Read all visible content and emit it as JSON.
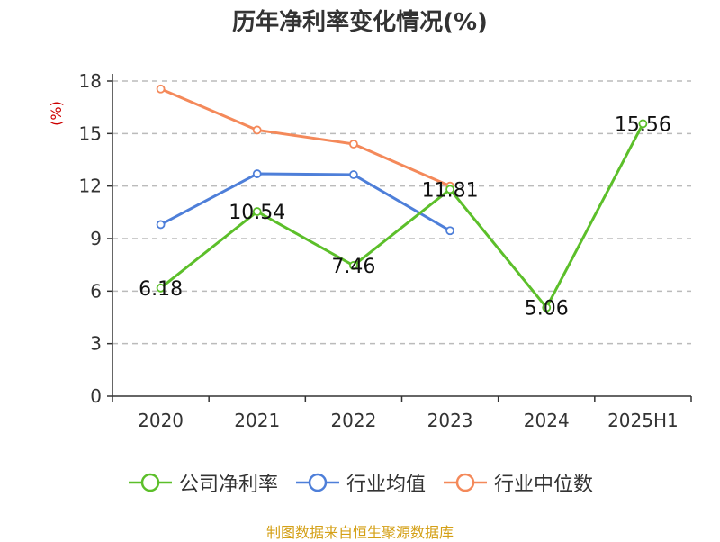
{
  "title": "历年净利率变化情况(%)",
  "source_note": "制图数据来自恒生聚源数据库",
  "colors": {
    "axis": "#333333",
    "grid": "#bbbbbb",
    "unit_label": "#cc0000",
    "source": "#d4a017"
  },
  "chart_data": {
    "type": "line",
    "title": "历年净利率变化情况(%)",
    "xlabel": "",
    "ylabel": "(%)",
    "categories": [
      "2020",
      "2021",
      "2022",
      "2023",
      "2024",
      "2025H1"
    ],
    "ylim": [
      0,
      18
    ],
    "yticks": [
      0,
      3,
      6,
      9,
      12,
      15,
      18
    ],
    "grid": true,
    "legend_position": "bottom",
    "series": [
      {
        "name": "公司净利率",
        "color": "#5cbf2a",
        "values": [
          6.18,
          10.54,
          7.46,
          11.81,
          5.06,
          15.56
        ],
        "labels": [
          "6.18",
          "10.54",
          "7.46",
          "11.81",
          "5.06",
          "15.56"
        ],
        "show_labels": true
      },
      {
        "name": "行业均值",
        "color": "#4e7fd9",
        "values": [
          9.8,
          12.7,
          12.65,
          9.45,
          null,
          null
        ],
        "show_labels": false
      },
      {
        "name": "行业中位数",
        "color": "#f4895a",
        "values": [
          17.55,
          15.2,
          14.4,
          12.0,
          null,
          null
        ],
        "show_labels": false
      }
    ]
  }
}
